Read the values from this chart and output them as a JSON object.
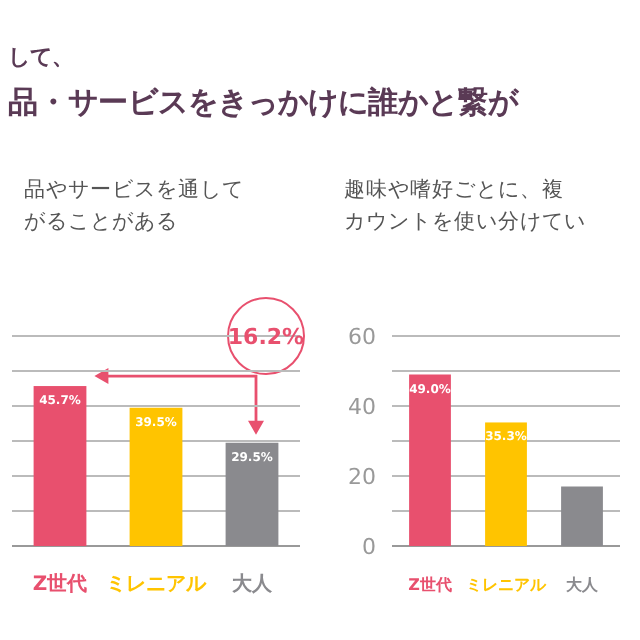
{
  "chart_data": [
    {
      "type": "other",
      "subtitle": "して、",
      "title": "品・サービスをきっかけに誰かと繋が"
    },
    {
      "type": "bar",
      "title": "品やサービスを通して",
      "subtitle": "がることがある",
      "categories": [
        "Z世代",
        "ミレニアル",
        "大人"
      ],
      "values": [
        45.7,
        39.5,
        29.5
      ],
      "colors": [
        "#e8506e",
        "#ffc400",
        "#8a8a8e"
      ],
      "value_labels": [
        "45.7%",
        "39.5%",
        "29.5%"
      ],
      "ylim": [
        0,
        60
      ],
      "yticks": [
        0,
        {
          "value": 10,
          "label": null
        },
        20,
        {
          "value": 30,
          "label": null
        },
        40,
        {
          "value": 50,
          "label": null
        },
        60
      ],
      "grid": "y",
      "tick_labels": "x",
      "annotations": [
        "16.2%"
      ]
    },
    {
      "type": "bar",
      "title": "趣味や嗜好ごとに、複",
      "subtitle": "カウントを使い分けてい",
      "categories": [
        "Z世代",
        "ミレニアル",
        "大人"
      ],
      "values": [
        49.0,
        35.3,
        17
      ],
      "colors": [
        "#e8506e",
        "#ffc400",
        "#8a8a8e"
      ],
      "value_labels": [
        "49.0%",
        "35.3%",
        null
      ],
      "ylim": [
        0,
        60
      ],
      "yticks": [
        0,
        {
          "value": 10,
          "label": null
        },
        20,
        {
          "value": 30,
          "label": null
        },
        40,
        {
          "value": 50,
          "label": null
        },
        60
      ],
      "grid": "y"
    }
  ]
}
